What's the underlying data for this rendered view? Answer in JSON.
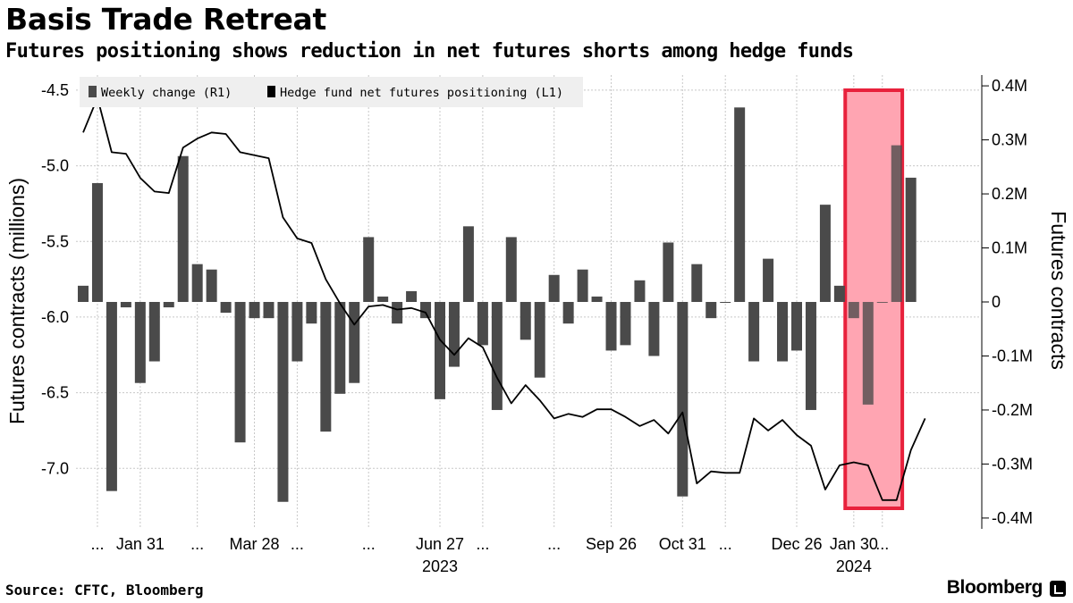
{
  "chart_data": {
    "type": "bar+line",
    "title": "Basis Trade Retreat",
    "subtitle": "Futures positioning shows reduction in net futures shorts among hedge funds",
    "source": "Source: CFTC, Bloomberg",
    "brand": "Bloomberg",
    "left_axis": {
      "label": "Futures contracts (millions)",
      "range": [
        -7.4,
        -4.4
      ],
      "ticks": [
        -4.5,
        -5.0,
        -5.5,
        -6.0,
        -6.5,
        -7.0
      ],
      "tick_labels": [
        "-4.5",
        "-5.0",
        "-5.5",
        "-6.0",
        "-6.5",
        "-7.0"
      ]
    },
    "right_axis": {
      "label": "Futures contracts",
      "range": [
        -0.42,
        0.42
      ],
      "ticks": [
        0.4,
        0.3,
        0.2,
        0.1,
        0,
        -0.1,
        -0.2,
        -0.3,
        -0.4
      ],
      "tick_labels": [
        "0.4M",
        "0.3M",
        "0.2M",
        "0.1M",
        "0",
        "-0.1M",
        "-0.2M",
        "-0.3M",
        "-0.4M"
      ]
    },
    "x_axis": {
      "tick_labels": [
        {
          "label": "...",
          "index": 1
        },
        {
          "label": "Jan 31",
          "index": 4
        },
        {
          "label": "...",
          "index": 8
        },
        {
          "label": "Mar 28",
          "index": 12
        },
        {
          "label": "...",
          "index": 15
        },
        {
          "label": "...",
          "index": 20
        },
        {
          "label": "Jun 27",
          "index": 25
        },
        {
          "label": "...",
          "index": 28
        },
        {
          "label": "...",
          "index": 33
        },
        {
          "label": "Sep 26",
          "index": 37
        },
        {
          "label": "Oct 31",
          "index": 42
        },
        {
          "label": "...",
          "index": 45
        },
        {
          "label": "Dec 26",
          "index": 50
        },
        {
          "label": "Jan 30",
          "index": 54
        },
        {
          "label": "...",
          "index": 56
        }
      ],
      "year_labels": [
        {
          "label": "2023",
          "index": 25
        },
        {
          "label": "2024",
          "index": 54
        }
      ]
    },
    "legend": {
      "placement": "top-left",
      "items": [
        {
          "label": "Weekly change (R1)",
          "color": "#4a4a4a"
        },
        {
          "label": "Hedge fund net futures positioning (L1)",
          "color": "#000000"
        }
      ]
    },
    "highlight": {
      "from_index": 53.4,
      "to_index": 57.4,
      "fill": "#ffa5b2",
      "stroke": "#e8213c"
    },
    "series": [
      {
        "name": "Weekly change (R1)",
        "type": "bar",
        "axis": "right",
        "color": "#4a4a4a",
        "values": [
          0.03,
          0.22,
          -0.35,
          -0.01,
          -0.15,
          -0.11,
          -0.01,
          0.27,
          0.07,
          0.06,
          -0.02,
          -0.26,
          -0.03,
          -0.03,
          -0.37,
          -0.11,
          -0.04,
          -0.24,
          -0.17,
          -0.15,
          0.12,
          0.01,
          -0.04,
          0.02,
          -0.03,
          -0.18,
          -0.12,
          0.14,
          -0.08,
          -0.2,
          0.12,
          -0.07,
          -0.14,
          0.05,
          -0.04,
          0.06,
          0.01,
          -0.09,
          -0.08,
          0.04,
          -0.1,
          0.11,
          -0.36,
          0.07,
          -0.03,
          0.0,
          0.36,
          -0.11,
          0.08,
          -0.11,
          -0.09,
          -0.2,
          0.18,
          0.03,
          -0.03,
          -0.19,
          0.0,
          0.29,
          0.23
        ]
      },
      {
        "name": "Hedge fund net futures positioning (L1)",
        "type": "line",
        "axis": "left",
        "color": "#000000",
        "values": [
          -4.78,
          -4.55,
          -4.91,
          -4.92,
          -5.08,
          -5.17,
          -5.18,
          -4.88,
          -4.82,
          -4.78,
          -4.79,
          -4.91,
          -4.93,
          -4.95,
          -5.34,
          -5.48,
          -5.51,
          -5.75,
          -5.91,
          -6.05,
          -5.93,
          -5.92,
          -5.95,
          -5.94,
          -5.97,
          -6.15,
          -6.25,
          -6.14,
          -6.2,
          -6.4,
          -6.57,
          -6.45,
          -6.55,
          -6.67,
          -6.64,
          -6.66,
          -6.61,
          -6.61,
          -6.66,
          -6.72,
          -6.68,
          -6.77,
          -6.63,
          -7.1,
          -7.02,
          -7.03,
          -7.03,
          -6.67,
          -6.75,
          -6.68,
          -6.78,
          -6.85,
          -7.14,
          -6.98,
          -6.96,
          -6.98,
          -7.21,
          -7.21,
          -6.88,
          -6.67
        ]
      }
    ]
  }
}
